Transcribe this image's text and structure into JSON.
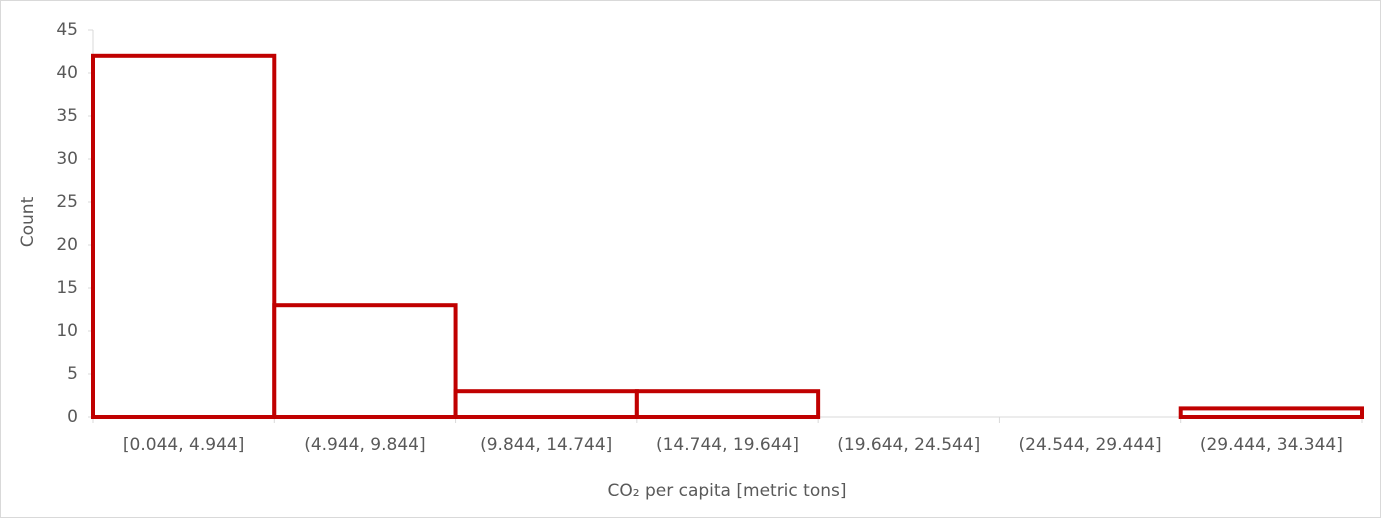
{
  "chart_data": {
    "type": "bar",
    "x_label": "CO₂ per capita [metric tons]",
    "y_label": "Count",
    "categories": [
      "[0.044, 4.944]",
      "(4.944, 9.844]",
      "(9.844, 14.744]",
      "(14.744, 19.644]",
      "(19.644, 24.544]",
      "(24.544, 29.444]",
      "(29.444, 34.344]"
    ],
    "values": [
      42,
      13,
      3,
      3,
      0,
      0,
      1
    ],
    "color": "#c00000",
    "ylim": [
      0,
      45
    ],
    "yticks": [
      0,
      5,
      10,
      15,
      20,
      25,
      30,
      35,
      40,
      45
    ]
  }
}
